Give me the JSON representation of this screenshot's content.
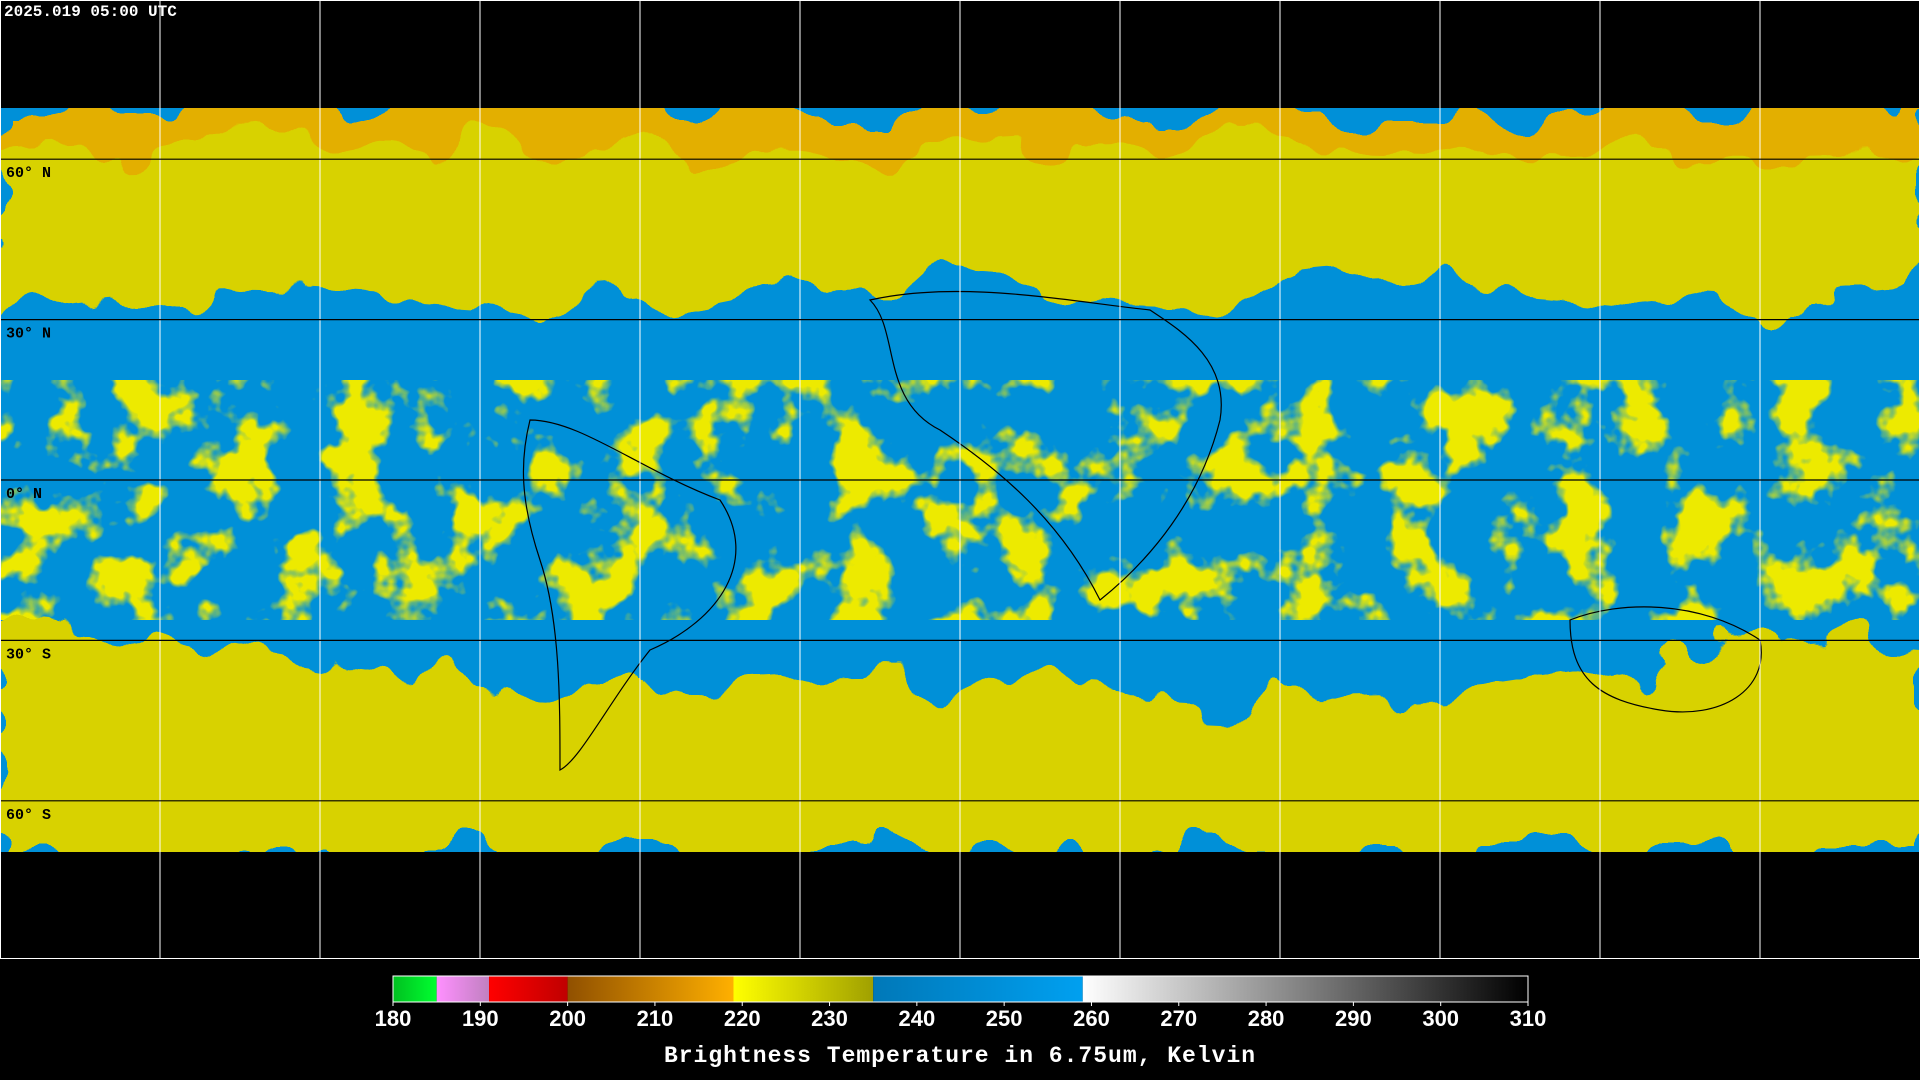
{
  "header": {
    "timestamp": "2025.019 05:00 UTC"
  },
  "latitudes": [
    {
      "value": 60,
      "label": "60° N"
    },
    {
      "value": 30,
      "label": "30° N"
    },
    {
      "value": 0,
      "label": "0° N"
    },
    {
      "value": -30,
      "label": "30° S"
    },
    {
      "value": -60,
      "label": "60° S"
    }
  ],
  "colorbar": {
    "title": "Brightness Temperature in 6.75um, Kelvin",
    "lim": [
      180,
      310
    ],
    "ticks": [
      180,
      190,
      200,
      210,
      220,
      230,
      240,
      250,
      260,
      270,
      280,
      290,
      300,
      310
    ],
    "segments": [
      {
        "from": 180,
        "to": 185,
        "colors": [
          "#00c020",
          "#00ff30"
        ]
      },
      {
        "from": 185,
        "to": 191,
        "colors": [
          "#ff90ff",
          "#c080c0"
        ]
      },
      {
        "from": 191,
        "to": 200,
        "colors": [
          "#ff0000",
          "#c00000"
        ]
      },
      {
        "from": 200,
        "to": 219,
        "colors": [
          "#905000",
          "#ffb000"
        ]
      },
      {
        "from": 219,
        "to": 235,
        "colors": [
          "#ffff00",
          "#a0a000"
        ]
      },
      {
        "from": 235,
        "to": 259,
        "colors": [
          "#0078b8",
          "#00a0f0"
        ]
      },
      {
        "from": 259,
        "to": 310,
        "colors": [
          "#ffffff",
          "#000000"
        ]
      }
    ]
  }
}
